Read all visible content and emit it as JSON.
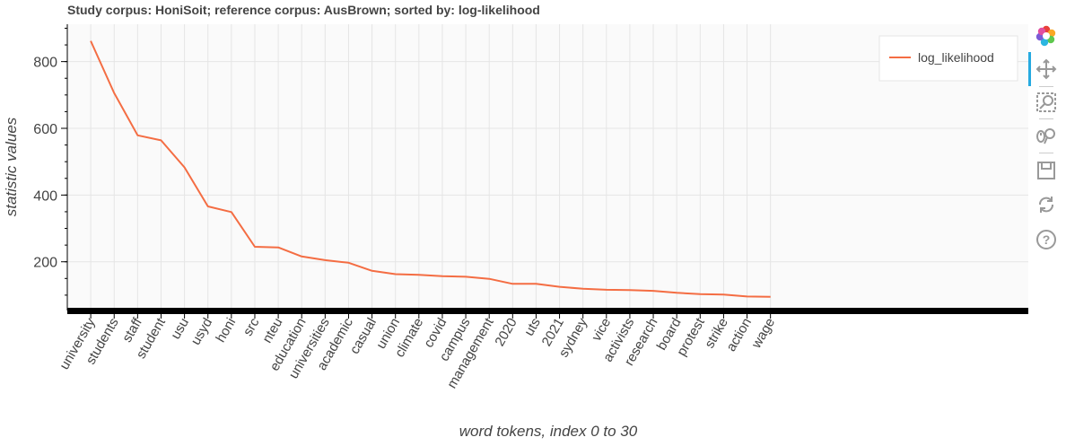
{
  "chart_data": {
    "type": "line",
    "title": "Study corpus: HoniSoit; reference corpus: AusBrown; sorted by: log-likelihood",
    "xlabel": "word tokens, index 0 to 30",
    "ylabel": "statistic values",
    "categories": [
      "university",
      "students",
      "staff",
      "student",
      "usu",
      "usyd",
      "honi",
      "src",
      "nteu",
      "education",
      "universities",
      "academic",
      "casual",
      "union",
      "climate",
      "covid",
      "campus",
      "management",
      "2020",
      "uts",
      "2021",
      "sydney",
      "vice",
      "activists",
      "research",
      "board",
      "protest",
      "strike",
      "action",
      "wage"
    ],
    "series": [
      {
        "name": "log_likelihood",
        "color": "#f46d43",
        "values": [
          862,
          706,
          579,
          564,
          483,
          366,
          349,
          245,
          243,
          216,
          205,
          197,
          173,
          163,
          161,
          157,
          155,
          149,
          134,
          134,
          125,
          119,
          116,
          115,
          113,
          107,
          103,
          102,
          96,
          95
        ]
      }
    ],
    "ylim": [
      54,
      912
    ],
    "yticks": [
      200,
      400,
      600,
      800
    ],
    "xlim": [
      -1,
      40
    ],
    "grid": true,
    "legend_position": "top-right"
  },
  "toolbar": {
    "tools": [
      "bokeh-logo-icon",
      "pan-icon",
      "box-zoom-icon",
      "wheel-zoom-icon",
      "save-icon",
      "reset-icon",
      "help-icon"
    ]
  }
}
